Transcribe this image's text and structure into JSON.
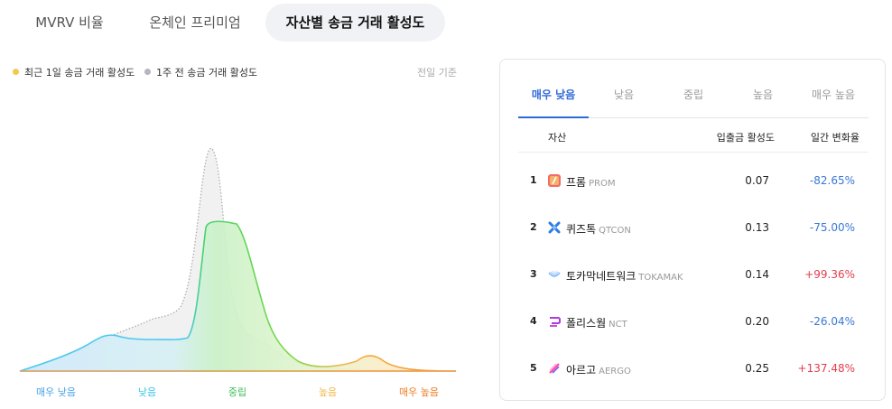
{
  "top_tabs": [
    {
      "label": "MVRV 비율"
    },
    {
      "label": "온체인 프리미엄"
    },
    {
      "label": "자산별 송금 거래 활성도"
    }
  ],
  "chart": {
    "legend": [
      {
        "label": "최근 1일 송금 거래 활성도",
        "color": "#f2c94c"
      },
      {
        "label": "1주 전 송금 거래 활성도",
        "color": "#b5b5bd"
      }
    ],
    "basis": "전일 기준",
    "colors": {
      "very_low": "#4cc8ef",
      "low": "#4cc8ef",
      "neutral": "#46d36a",
      "high": "#f2b84b",
      "very_high": "#f08a24"
    }
  },
  "chart_data": {
    "type": "area",
    "categories": [
      "매우 낮음",
      "낮음",
      "중립",
      "높음",
      "매우 높음"
    ],
    "series": [
      {
        "name": "최근 1일 송금 거래 활성도",
        "style": "filled-area"
      },
      {
        "name": "1주 전 송금 거래 활성도",
        "style": "dotted-area"
      }
    ],
    "category_colors": [
      "#4aa3e8",
      "#3cc6e6",
      "#3ec05a",
      "#f2b84b",
      "#ef7d22"
    ]
  },
  "right_panel": {
    "tabs": [
      {
        "label": "매우 낮음",
        "active": true
      },
      {
        "label": "낮음",
        "active": false
      },
      {
        "label": "중립",
        "active": false
      },
      {
        "label": "높음",
        "active": false
      },
      {
        "label": "매우 높음",
        "active": false
      }
    ],
    "headers": {
      "asset": "자산",
      "activity": "입출금 활성도",
      "change": "일간 변화율"
    },
    "rows": [
      {
        "rank": "1",
        "name": "프롬",
        "symbol": "PROM",
        "activity": "0.07",
        "change": "-82.65%",
        "logo": "prom-logo",
        "trend": "down"
      },
      {
        "rank": "2",
        "name": "퀴즈톡",
        "symbol": "QTCON",
        "activity": "0.13",
        "change": "-75.00%",
        "logo": "qtcon-logo",
        "trend": "down"
      },
      {
        "rank": "3",
        "name": "토카막네트워크",
        "symbol": "TOKAMAK",
        "activity": "0.14",
        "change": "+99.36%",
        "logo": "tokamak-logo",
        "trend": "up"
      },
      {
        "rank": "4",
        "name": "폴리스웜",
        "symbol": "NCT",
        "activity": "0.20",
        "change": "-26.04%",
        "logo": "nct-logo",
        "trend": "down"
      },
      {
        "rank": "5",
        "name": "아르고",
        "symbol": "AERGO",
        "activity": "0.25",
        "change": "+137.48%",
        "logo": "aergo-logo",
        "trend": "up"
      }
    ]
  }
}
